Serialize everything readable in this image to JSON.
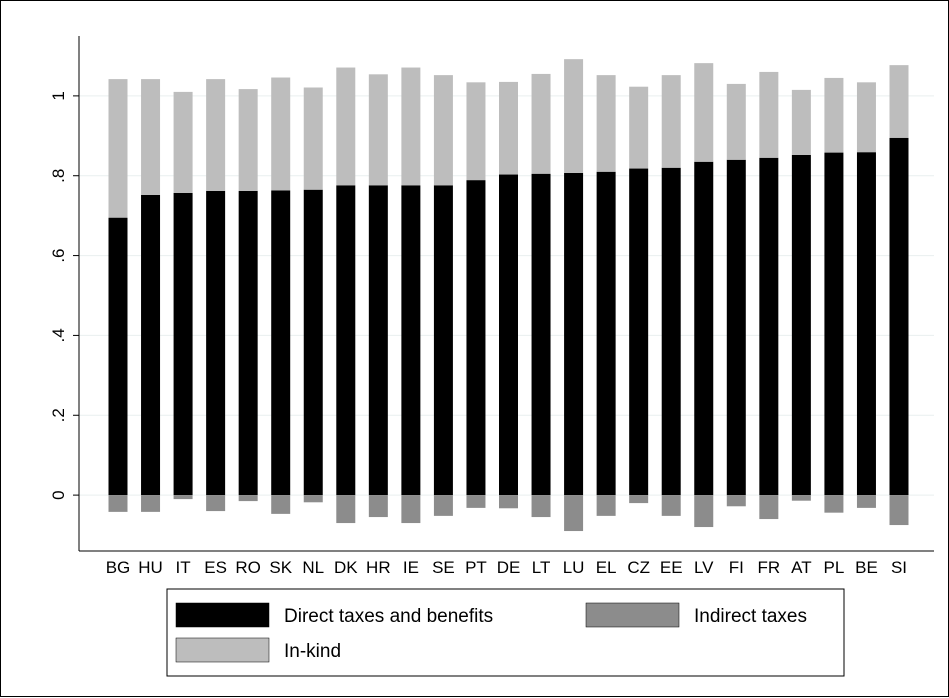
{
  "chart_data": {
    "type": "bar",
    "stacked": true,
    "title": "",
    "xlabel": "",
    "ylabel": "",
    "categories": [
      "BG",
      "HU",
      "IT",
      "ES",
      "RO",
      "SK",
      "NL",
      "DK",
      "HR",
      "IE",
      "SE",
      "PT",
      "DE",
      "LT",
      "LU",
      "EL",
      "CZ",
      "EE",
      "LV",
      "FI",
      "FR",
      "AT",
      "PL",
      "BE",
      "SI"
    ],
    "series": [
      {
        "name": "Direct taxes and benefits",
        "color": "#000000",
        "values": [
          0.695,
          0.752,
          0.757,
          0.762,
          0.762,
          0.763,
          0.765,
          0.776,
          0.776,
          0.776,
          0.776,
          0.789,
          0.803,
          0.805,
          0.807,
          0.81,
          0.818,
          0.82,
          0.835,
          0.84,
          0.845,
          0.852,
          0.858,
          0.859,
          0.895
        ]
      },
      {
        "name": "Indirect taxes",
        "color": "#8c8c8c",
        "values": [
          -0.042,
          -0.042,
          -0.01,
          -0.04,
          -0.015,
          -0.047,
          -0.018,
          -0.07,
          -0.055,
          -0.07,
          -0.052,
          -0.032,
          -0.033,
          -0.055,
          -0.09,
          -0.052,
          -0.02,
          -0.052,
          -0.08,
          -0.028,
          -0.06,
          -0.014,
          -0.044,
          -0.032,
          -0.075
        ]
      },
      {
        "name": "In-kind",
        "color": "#bdbdbd",
        "values": [
          0.347,
          0.29,
          0.253,
          0.28,
          0.255,
          0.283,
          0.256,
          0.295,
          0.278,
          0.295,
          0.276,
          0.245,
          0.232,
          0.25,
          0.285,
          0.242,
          0.205,
          0.232,
          0.247,
          0.19,
          0.215,
          0.163,
          0.187,
          0.175,
          0.182
        ]
      }
    ],
    "ylim": [
      -0.14,
      1.15
    ],
    "y_ticks": [
      0,
      0.2,
      0.4,
      0.6,
      0.8,
      1.0
    ],
    "y_tick_labels": [
      "0",
      ".2",
      ".4",
      ".6",
      ".8",
      "1"
    ],
    "grid": true,
    "legend_position": "bottom",
    "legend_entries": [
      "Direct taxes and benefits",
      "Indirect taxes",
      "In-kind"
    ]
  }
}
